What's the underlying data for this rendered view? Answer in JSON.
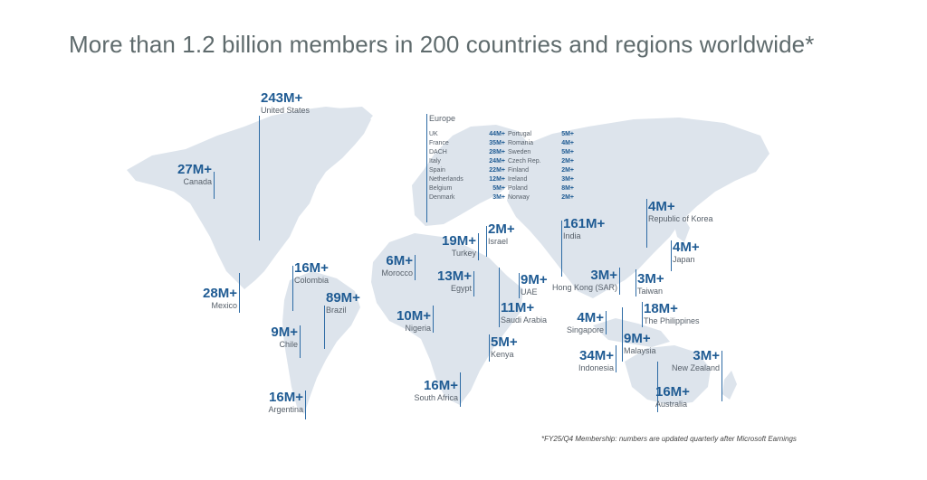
{
  "title": "More than 1.2 billion members in 200 countries and regions worldwide*",
  "footnote": "*FY25/Q4 Membership: numbers are updated quarterly after Microsoft Earnings",
  "colors": {
    "value": "#1f5b93",
    "label": "#57606a",
    "land": "#dde4ec",
    "title": "#5f6b6d"
  },
  "countries": [
    {
      "value": "243M+",
      "name": "United States"
    },
    {
      "value": "27M+",
      "name": "Canada"
    },
    {
      "value": "28M+",
      "name": "Mexico"
    },
    {
      "value": "16M+",
      "name": "Colombia"
    },
    {
      "value": "89M+",
      "name": "Brazil"
    },
    {
      "value": "9M+",
      "name": "Chile"
    },
    {
      "value": "16M+",
      "name": "Argentina"
    },
    {
      "value": "6M+",
      "name": "Morocco"
    },
    {
      "value": "19M+",
      "name": "Turkey"
    },
    {
      "value": "2M+",
      "name": "Israel"
    },
    {
      "value": "13M+",
      "name": "Egypt"
    },
    {
      "value": "10M+",
      "name": "Nigeria"
    },
    {
      "value": "9M+",
      "name": "UAE"
    },
    {
      "value": "11M+",
      "name": "Saudi Arabia"
    },
    {
      "value": "5M+",
      "name": "Kenya"
    },
    {
      "value": "16M+",
      "name": "South Africa"
    },
    {
      "value": "161M+",
      "name": "India"
    },
    {
      "value": "3M+",
      "name": "Hong Kong (SAR)"
    },
    {
      "value": "4M+",
      "name": "Singapore"
    },
    {
      "value": "34M+",
      "name": "Indonesia"
    },
    {
      "value": "9M+",
      "name": "Malaysia"
    },
    {
      "value": "3M+",
      "name": "Taiwan"
    },
    {
      "value": "18M+",
      "name": "The Philippines"
    },
    {
      "value": "4M+",
      "name": "Republic of Korea"
    },
    {
      "value": "4M+",
      "name": "Japan"
    },
    {
      "value": "3M+",
      "name": "New Zealand"
    },
    {
      "value": "16M+",
      "name": "Australia"
    }
  ],
  "europe": {
    "heading": "Europe",
    "rows": [
      {
        "name": "UK",
        "value": "44M+",
        "name2": "Portugal",
        "value2": "5M+"
      },
      {
        "name": "France",
        "value": "35M+",
        "name2": "Romania",
        "value2": "4M+"
      },
      {
        "name": "DACH",
        "value": "28M+",
        "name2": "Sweden",
        "value2": "5M+"
      },
      {
        "name": "Italy",
        "value": "24M+",
        "name2": "Czech Rep.",
        "value2": "2M+"
      },
      {
        "name": "Spain",
        "value": "22M+",
        "name2": "Finland",
        "value2": "2M+"
      },
      {
        "name": "Netherlands",
        "value": "12M+",
        "name2": "Ireland",
        "value2": "3M+"
      },
      {
        "name": "Belgium",
        "value": "5M+",
        "name2": "Poland",
        "value2": "8M+"
      },
      {
        "name": "Denmark",
        "value": "3M+",
        "name2": "Norway",
        "value2": "2M+"
      }
    ]
  }
}
